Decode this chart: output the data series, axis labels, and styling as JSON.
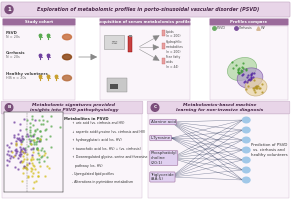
{
  "title": "Exploration of metabolomic profiles in porto-sinusoidal vascular disorder (PSVD)",
  "title_bg": "#e8d5e8",
  "title_circle_color": "#7b4f7b",
  "legend_items": [
    "PSVD",
    "Cirrhosis",
    "HV"
  ],
  "legend_colors": [
    "#6aaa64",
    "#7b4f9b",
    "#d4b896"
  ],
  "section_b_title": "Metabolomic signatures provided\ninsights into PSVD pathophysiology",
  "section_c_title": "Metabolomics-based machine\nlearning for non-invasive diagnosis",
  "section_b_items": [
    "↑ uric acid (vs. cirrhosis and HV)",
    "↓ aspartic acid/tyrosine (vs. cirrhosis and HV)",
    "↑ hydroxyglutaric acid (vs. HV)",
    "↑ taurocholic acid (vs. HV) ↓ (vs. cirrhosis)",
    "↑ Downregulated glycine, serine and threonine",
    "   pathway (vs. HV)",
    "- Upregulated lipid profiles",
    "- Alterations in pyrimidine metabolism"
  ],
  "metabolites_left": [
    "Alanine acid",
    "L-Tyrosine",
    "Phosphatidyl\ncholine\n(20:1)",
    "Triglyceride\n(AA:5)"
  ],
  "metabolites_right_label": "Prediction of PSVD\nvs. cirrhosis and\nhealthy volunteers",
  "bg_color": "#ffffff"
}
